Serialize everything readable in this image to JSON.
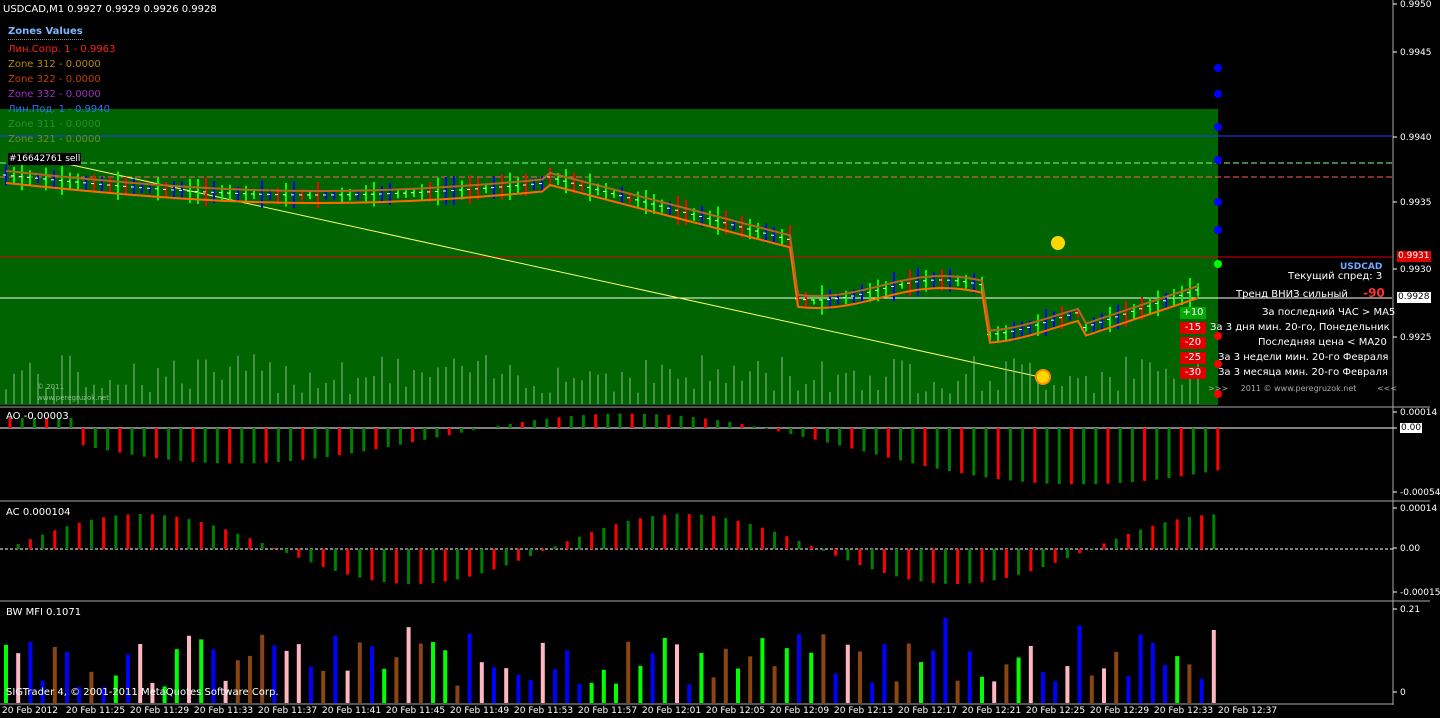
{
  "header": {
    "symbol": "USDCAD,M1",
    "ohlc": "0.9927 0.9929 0.9926 0.9928"
  },
  "zones": {
    "title": "Zones Values",
    "items": [
      {
        "label": "Лин.Сопр. 1    - 0.9963",
        "color": "#ff2020"
      },
      {
        "label": "Zone 312 - 0.0000",
        "color": "#b8860b"
      },
      {
        "label": "Zone 322 - 0.0000",
        "color": "#c04000"
      },
      {
        "label": "Zone 332 - 0.0000",
        "color": "#9b30c0"
      },
      {
        "label": "Лин.Под. 1    - 0.9940",
        "color": "#3070ff"
      },
      {
        "label": "Zone 311 - 0.0000",
        "color": "#2e8b2e"
      },
      {
        "label": "Zone 321 - 0.0000",
        "color": "#6b8e23"
      }
    ]
  },
  "order_label": "#16642761 sell",
  "watermark": {
    "year": "© 2011",
    "site": "www.peregruzok.net"
  },
  "info_panel": {
    "symbol": "USDCAD",
    "spread": "Текущий спред: 3",
    "trend_label": "Тренд ВНИЗ сильный",
    "trend_value": "-90",
    "rows": [
      {
        "score": "+10",
        "text": "За последний ЧАС > MA5",
        "color": "#00aa00"
      },
      {
        "score": "-15",
        "text": "За 3 дня мин. 20-го, Понедельник",
        "color": "#e00000"
      },
      {
        "score": "-20",
        "text": "Последняя цена < MA20",
        "color": "#e00000"
      },
      {
        "score": "-25",
        "text": "За 3 недели мин. 20-го Февраля",
        "color": "#e00000"
      },
      {
        "score": "-30",
        "text": "За 3 месяца мин. 20-го Февраля",
        "color": "#e00000"
      }
    ],
    "footer": "2011  ©  www.peregruzok.net",
    "footer_left": ">>>",
    "footer_right": "<<<"
  },
  "price_axis": {
    "labels": [
      "0.9950",
      "0.9945",
      "0.9940",
      "0.9935",
      "0.9930",
      "0.9925"
    ],
    "tag_red": "0.9931",
    "tag_white": "0.9928"
  },
  "ao": {
    "title": "AO -0.00003",
    "axis": [
      "0.00014",
      "0.00",
      "-0.00054"
    ],
    "color_up": "#008000",
    "color_down": "#ff0000"
  },
  "ac": {
    "title": "AC 0.000104",
    "axis": [
      "0.00014",
      "0.00",
      "-0.00015"
    ]
  },
  "mfi": {
    "title": "BW MFI 0.1071",
    "axis": [
      "0.21",
      "0"
    ]
  },
  "copyright": "SIGTrader 4, © 2001-2011 MetaQuotes Software Corp.",
  "time_axis": [
    "20 Feb 2012",
    "20 Feb 11:25",
    "20 Feb 11:29",
    "20 Feb 11:33",
    "20 Feb 11:37",
    "20 Feb 11:41",
    "20 Feb 11:45",
    "20 Feb 11:49",
    "20 Feb 11:53",
    "20 Feb 11:57",
    "20 Feb 12:01",
    "20 Feb 12:05",
    "20 Feb 12:09",
    "20 Feb 12:13",
    "20 Feb 12:17",
    "20 Feb 12:21",
    "20 Feb 12:25",
    "20 Feb 12:29",
    "20 Feb 12:33",
    "20 Feb 12:37"
  ],
  "colors": {
    "zone_green": "#006400",
    "bull": "#00ff00",
    "bear": "#ff0000",
    "up_blue": "#0000ff",
    "ma_orange": "#ff6a00",
    "ma_brown": "#b5651d"
  }
}
